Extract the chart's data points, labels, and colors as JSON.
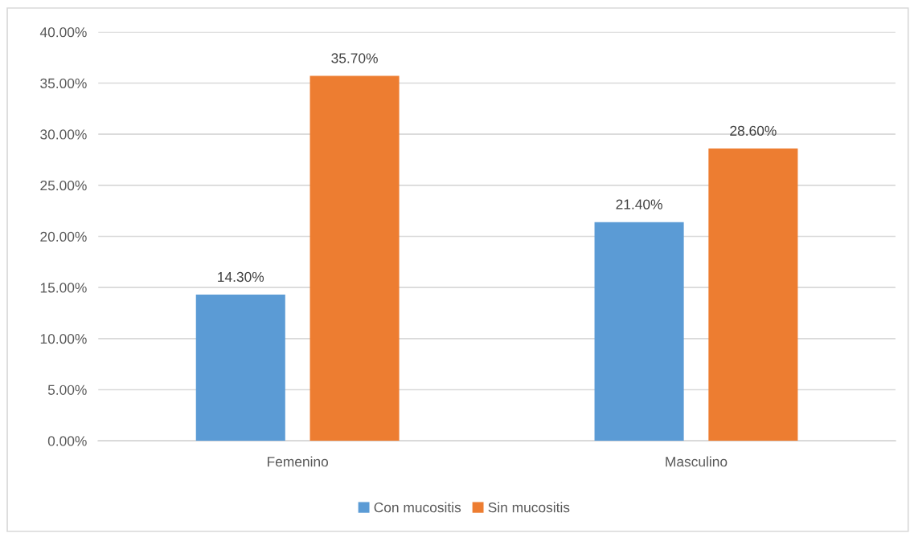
{
  "chart_data": {
    "type": "bar",
    "categories": [
      "Femenino",
      "Masculino"
    ],
    "series": [
      {
        "name": "Con mucositis",
        "color": "#5b9bd5",
        "values": [
          14.3,
          21.4
        ],
        "value_labels": [
          "14.30%",
          "21.40%"
        ]
      },
      {
        "name": "Sin mucositis",
        "color": "#ed7d31",
        "values": [
          35.7,
          28.6
        ],
        "value_labels": [
          "35.70%",
          "28.60%"
        ]
      }
    ],
    "ylim": [
      0,
      40
    ],
    "yticks": [
      {
        "value": 0,
        "label": "0.00%"
      },
      {
        "value": 5,
        "label": "5.00%"
      },
      {
        "value": 10,
        "label": "10.00%"
      },
      {
        "value": 15,
        "label": "15.00%"
      },
      {
        "value": 20,
        "label": "20.00%"
      },
      {
        "value": 25,
        "label": "25.00%"
      },
      {
        "value": 30,
        "label": "30.00%"
      },
      {
        "value": 35,
        "label": "35.00%"
      },
      {
        "value": 40,
        "label": "40.00%"
      }
    ],
    "grid": "y",
    "legend": "bottom"
  }
}
